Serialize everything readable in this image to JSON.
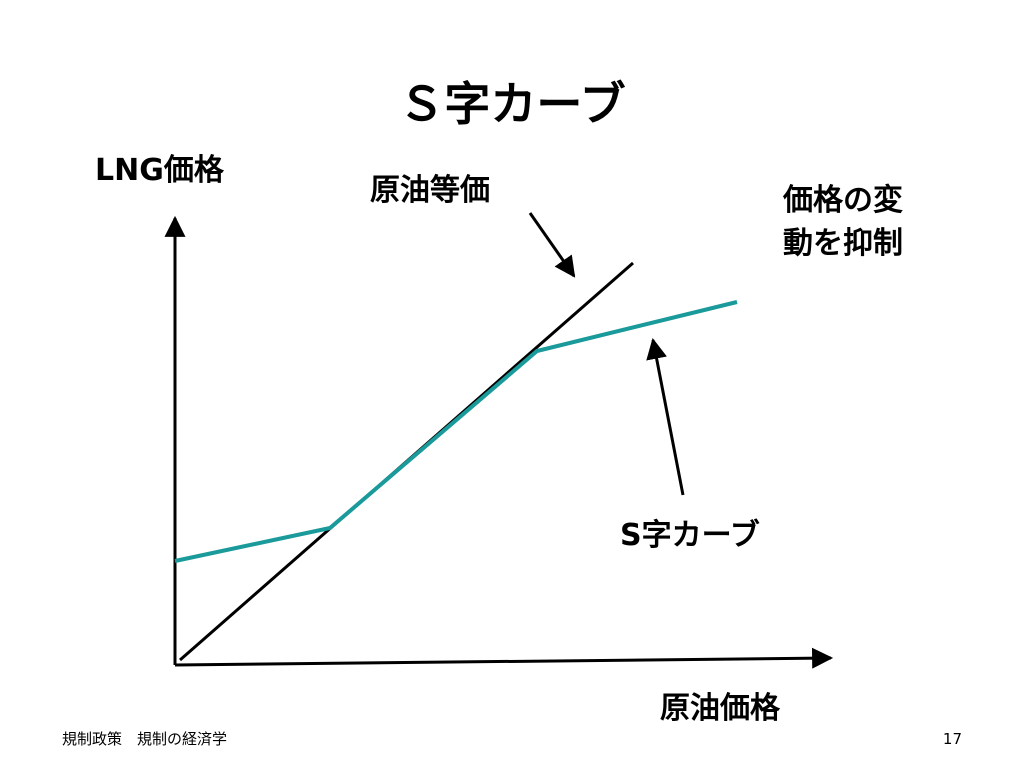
{
  "title": "Ｓ字カーブ",
  "y_axis_label": "LNG価格",
  "x_axis_label": "原油価格",
  "labels": {
    "crude_equivalent": "原油等価",
    "suppress_volatility": [
      "価格の変",
      "動を抑制"
    ],
    "s_curve": "S字カーブ"
  },
  "footer": {
    "text": "規制政策　規制の経済学",
    "page": "17"
  }
}
